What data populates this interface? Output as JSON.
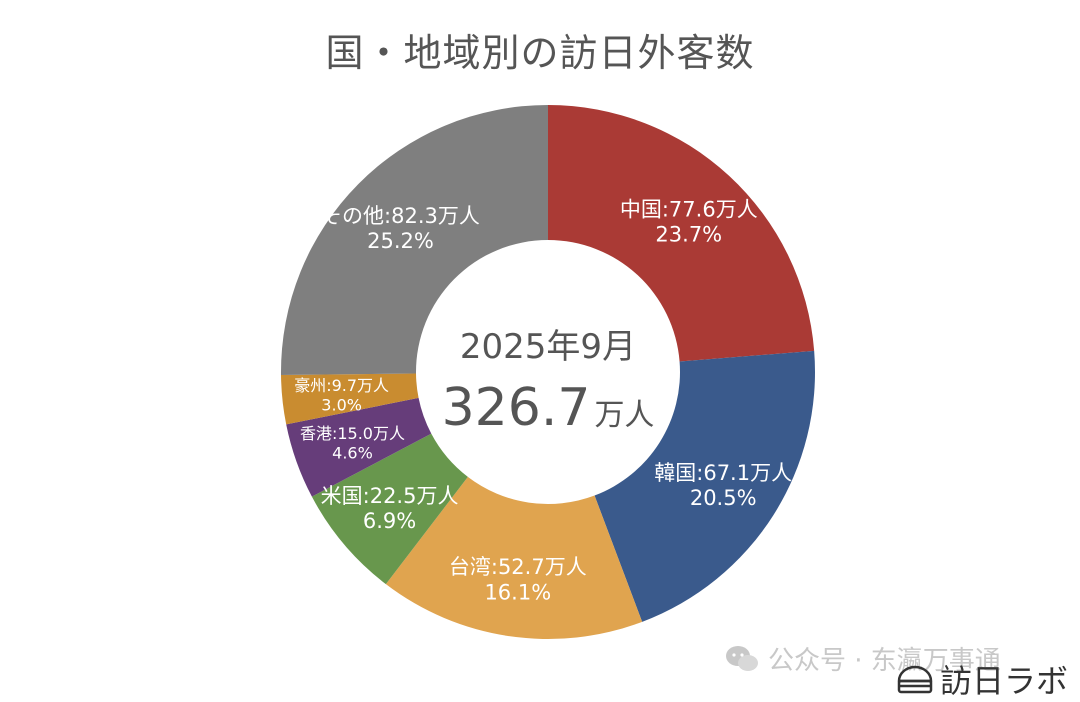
{
  "title": "国・地域別の訪日外客数",
  "center": {
    "period": "2025年9月",
    "total": "326.7",
    "unit": "万人"
  },
  "chart_data": {
    "type": "pie",
    "title": "国・地域別の訪日外客数",
    "total": 326.7,
    "unit": "万人",
    "slices": [
      {
        "name": "中国",
        "value": 77.6,
        "percent": 23.7,
        "label": "中国:77.6万人",
        "pct_label": "23.7%",
        "color": "#aa3a35"
      },
      {
        "name": "韓国",
        "value": 67.1,
        "percent": 20.5,
        "label": "韓国:67.1万人",
        "pct_label": "20.5%",
        "color": "#3a5a8c"
      },
      {
        "name": "台湾",
        "value": 52.7,
        "percent": 16.1,
        "label": "台湾:52.7万人",
        "pct_label": "16.1%",
        "color": "#e0a44f"
      },
      {
        "name": "米国",
        "value": 22.5,
        "percent": 6.9,
        "label": "米国:22.5万人",
        "pct_label": "6.9%",
        "color": "#68974d"
      },
      {
        "name": "香港",
        "value": 15.0,
        "percent": 4.6,
        "label": "香港:15.0万人",
        "pct_label": "4.6%",
        "color": "#663d7a"
      },
      {
        "name": "豪州",
        "value": 9.7,
        "percent": 3.0,
        "label": "豪州:9.7万人",
        "pct_label": "3.0%",
        "color": "#c98c30"
      },
      {
        "name": "その他",
        "value": 82.3,
        "percent": 25.2,
        "label": "その他:82.3万人",
        "pct_label": "25.2%",
        "color": "#7f7f7f"
      }
    ]
  },
  "watermark": {
    "text": "公众号 · 东瀛万事通"
  },
  "logo": {
    "text": "訪日ラボ"
  }
}
